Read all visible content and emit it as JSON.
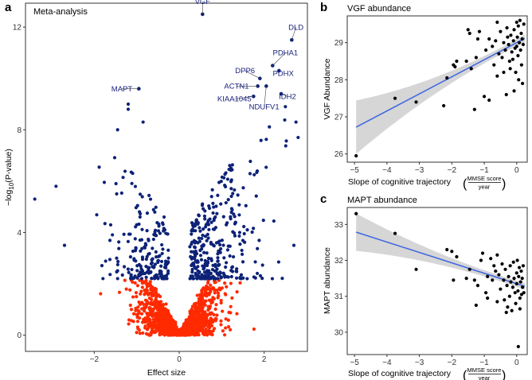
{
  "colors": {
    "significant": "#0d2277",
    "nonsignificant": "#ff2a00",
    "label": "#1a237e",
    "fit_line": "#4169e1",
    "ci_band": "#c8c8c8",
    "scatter_point": "#000000"
  },
  "chart_data": [
    {
      "panel": "a",
      "type": "scatter",
      "title": "Meta-analysis",
      "xlabel": "Effect size",
      "ylabel": "−log10(P-value)",
      "ylabel_main": "−log",
      "ylabel_sub": "10",
      "ylabel_tail": "(P-value)",
      "xlim": [
        -3.6,
        3.0
      ],
      "ylim": [
        -0.6,
        12.9
      ],
      "xticks": [
        -2,
        0,
        2
      ],
      "yticks": [
        0,
        4,
        8,
        12
      ],
      "significance_threshold": 2.2,
      "labeled_points": [
        {
          "gene": "VGF",
          "x": 0.55,
          "y": 12.5,
          "label_x": 0.55,
          "label_y": 12.9
        },
        {
          "gene": "DLD",
          "x": 2.65,
          "y": 11.5,
          "label_x": 2.75,
          "label_y": 11.9
        },
        {
          "gene": "PDHA1",
          "x": 2.2,
          "y": 10.5,
          "label_x": 2.5,
          "label_y": 10.9
        },
        {
          "gene": "PDHX",
          "x": 2.35,
          "y": 10.3,
          "label_x": 2.45,
          "label_y": 10.1
        },
        {
          "gene": "DPP6",
          "x": 1.9,
          "y": 10.0,
          "label_x": 1.55,
          "label_y": 10.2
        },
        {
          "gene": "ACTN1",
          "x": 1.85,
          "y": 9.7,
          "label_x": 1.35,
          "label_y": 9.6
        },
        {
          "gene": "MAPT",
          "x": -0.95,
          "y": 9.6,
          "label_x": -1.35,
          "label_y": 9.5
        },
        {
          "gene": "KIAA1045",
          "x": 1.75,
          "y": 9.3,
          "label_x": 1.3,
          "label_y": 9.1
        },
        {
          "gene": "IDH2",
          "x": 2.4,
          "y": 9.4,
          "label_x": 2.55,
          "label_y": 9.2
        },
        {
          "gene": "NDUFV1",
          "x": 2.05,
          "y": 9.7,
          "label_x": 2.0,
          "label_y": 8.8
        }
      ]
    },
    {
      "panel": "b",
      "type": "scatter",
      "title": "VGF abundance",
      "xlabel": "Slope of cognitive trajectory",
      "x_unit_numerator": "MMSE score",
      "x_unit_denominator": "year",
      "ylabel": "VGF Abundance",
      "xlim": [
        -5.2,
        0.3
      ],
      "ylim": [
        25.8,
        29.7
      ],
      "xticks": [
        -5,
        -4,
        -3,
        -2,
        -1,
        0
      ],
      "yticks": [
        26,
        27,
        28,
        29
      ],
      "fit": {
        "intercept": 29.0,
        "slope": 0.46,
        "ci_at_x_min": 0.72,
        "ci_at_x_mean": 0.09
      },
      "points": [
        [
          -4.95,
          25.95
        ],
        [
          -3.75,
          27.5
        ],
        [
          -3.1,
          27.4
        ],
        [
          -2.25,
          27.3
        ],
        [
          -2.15,
          28.05
        ],
        [
          -1.95,
          28.4
        ],
        [
          -1.9,
          28.35
        ],
        [
          -1.85,
          28.5
        ],
        [
          -1.55,
          28.5
        ],
        [
          -1.5,
          29.35
        ],
        [
          -1.45,
          29.25
        ],
        [
          -1.4,
          28.3
        ],
        [
          -1.3,
          27.2
        ],
        [
          -1.25,
          28.6
        ],
        [
          -1.2,
          29.1
        ],
        [
          -1.15,
          29.3
        ],
        [
          -1.0,
          27.55
        ],
        [
          -0.95,
          28.8
        ],
        [
          -0.85,
          27.45
        ],
        [
          -0.85,
          29.1
        ],
        [
          -0.75,
          28.9
        ],
        [
          -0.7,
          28.4
        ],
        [
          -0.65,
          29.05
        ],
        [
          -0.6,
          28.1
        ],
        [
          -0.55,
          28.7
        ],
        [
          -0.5,
          29.3
        ],
        [
          -0.45,
          28.6
        ],
        [
          -0.4,
          29.0
        ],
        [
          -0.4,
          28.2
        ],
        [
          -0.35,
          28.8
        ],
        [
          -0.3,
          29.4
        ],
        [
          -0.28,
          29.15
        ],
        [
          -0.25,
          28.95
        ],
        [
          -0.22,
          28.5
        ],
        [
          -0.2,
          28.3
        ],
        [
          -0.18,
          29.2
        ],
        [
          -0.15,
          28.75
        ],
        [
          -0.12,
          28.55
        ],
        [
          -0.1,
          29.05
        ],
        [
          -0.08,
          29.35
        ],
        [
          -0.05,
          28.85
        ],
        [
          -0.03,
          28.2
        ],
        [
          0.0,
          29.55
        ],
        [
          0.0,
          28.9
        ],
        [
          0.02,
          29.15
        ],
        [
          0.04,
          28.65
        ],
        [
          0.05,
          29.45
        ],
        [
          0.06,
          28.0
        ],
        [
          0.08,
          29.0
        ],
        [
          0.1,
          29.6
        ],
        [
          0.12,
          28.8
        ],
        [
          0.14,
          29.25
        ],
        [
          0.15,
          28.4
        ],
        [
          0.17,
          29.1
        ],
        [
          0.18,
          27.9
        ],
        [
          0.2,
          28.95
        ],
        [
          0.22,
          29.5
        ],
        [
          -0.08,
          27.7
        ],
        [
          -0.32,
          27.6
        ],
        [
          -0.6,
          29.55
        ]
      ]
    },
    {
      "panel": "c",
      "type": "scatter",
      "title": "MAPT abundance",
      "xlabel": "Slope of cognitive trajectory",
      "x_unit_numerator": "MMSE score",
      "x_unit_denominator": "year",
      "ylabel": "MAPT abundance",
      "xlim": [
        -5.2,
        0.3
      ],
      "ylim": [
        29.4,
        33.45
      ],
      "xticks": [
        -5,
        -4,
        -3,
        -2,
        -1,
        0
      ],
      "yticks": [
        30,
        31,
        32,
        33
      ],
      "fit": {
        "intercept": 31.35,
        "slope": -0.29,
        "ci_at_x_min": 0.52,
        "ci_at_x_mean": 0.08
      },
      "points": [
        [
          -4.95,
          33.3
        ],
        [
          -3.75,
          32.75
        ],
        [
          -3.1,
          31.75
        ],
        [
          -2.15,
          32.3
        ],
        [
          -2.0,
          32.25
        ],
        [
          -1.95,
          31.45
        ],
        [
          -1.85,
          32.1
        ],
        [
          -1.55,
          31.5
        ],
        [
          -1.45,
          31.75
        ],
        [
          -1.3,
          31.45
        ],
        [
          -1.25,
          30.75
        ],
        [
          -1.2,
          31.3
        ],
        [
          -1.1,
          32.0
        ],
        [
          -1.05,
          32.2
        ],
        [
          -0.95,
          31.1
        ],
        [
          -0.9,
          30.95
        ],
        [
          -0.8,
          32.05
        ],
        [
          -0.75,
          31.45
        ],
        [
          -0.7,
          31.85
        ],
        [
          -0.65,
          31.7
        ],
        [
          -0.6,
          30.85
        ],
        [
          -0.55,
          31.6
        ],
        [
          -0.5,
          31.2
        ],
        [
          -0.45,
          31.9
        ],
        [
          -0.4,
          31.45
        ],
        [
          -0.38,
          30.9
        ],
        [
          -0.35,
          31.75
        ],
        [
          -0.3,
          31.3
        ],
        [
          -0.28,
          30.7
        ],
        [
          -0.25,
          31.55
        ],
        [
          -0.22,
          31.0
        ],
        [
          -0.2,
          31.85
        ],
        [
          -0.18,
          31.4
        ],
        [
          -0.15,
          30.6
        ],
        [
          -0.12,
          31.25
        ],
        [
          -0.1,
          31.95
        ],
        [
          -0.08,
          31.5
        ],
        [
          -0.05,
          31.1
        ],
        [
          -0.03,
          30.8
        ],
        [
          0.0,
          31.65
        ],
        [
          0.0,
          31.35
        ],
        [
          0.02,
          32.0
        ],
        [
          0.04,
          31.15
        ],
        [
          0.05,
          29.6
        ],
        [
          0.06,
          31.55
        ],
        [
          0.08,
          31.8
        ],
        [
          0.1,
          30.95
        ],
        [
          0.12,
          31.4
        ],
        [
          0.14,
          31.7
        ],
        [
          0.15,
          31.05
        ],
        [
          0.17,
          31.5
        ],
        [
          0.18,
          31.25
        ],
        [
          0.2,
          31.85
        ],
        [
          0.22,
          31.1
        ],
        [
          -0.6,
          32.15
        ],
        [
          -0.32,
          30.55
        ],
        [
          -0.9,
          31.55
        ],
        [
          0.1,
          30.65
        ]
      ]
    }
  ]
}
